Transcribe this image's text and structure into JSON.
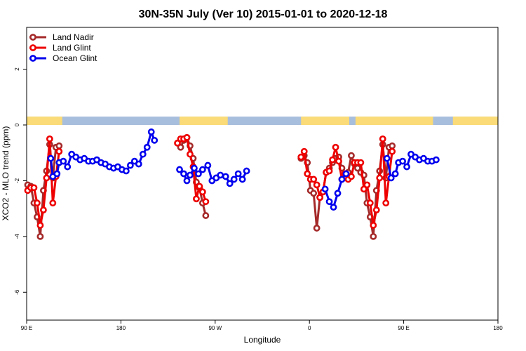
{
  "chart_data": {
    "type": "line",
    "title": "30N-35N July (Ver 10)   2015-01-01 to 2020-12-18",
    "xlabel": "Longitude",
    "ylabel": "XCO2 - MLO trend (ppm)",
    "x_ticks": [
      {
        "pos": 90,
        "label": "90 E"
      },
      {
        "pos": 180,
        "label": "180"
      },
      {
        "pos": 270,
        "label": "90 W"
      },
      {
        "pos": 360,
        "label": "0"
      },
      {
        "pos": 450,
        "label": "90 E"
      },
      {
        "pos": 540,
        "label": "180"
      }
    ],
    "xlim": [
      90,
      540
    ],
    "y_ticks": [
      2,
      0,
      -2,
      -4,
      -6
    ],
    "ylim": [
      -7,
      3.5
    ],
    "grid": false,
    "legend_position": "top-left",
    "land_strip": [
      [
        90,
        124
      ],
      [
        236,
        282
      ],
      [
        352,
        398
      ],
      [
        404,
        478
      ],
      [
        497,
        540
      ]
    ],
    "colors": {
      "land": "#fadb77",
      "ocean": "#a8bedd"
    },
    "series": [
      {
        "name": "Land Nadir",
        "color": "#a52a2a",
        "segments": [
          [
            [
              91,
              -2.15
            ],
            [
              94,
              -2.2
            ],
            [
              97,
              -2.8
            ],
            [
              100,
              -3.3
            ],
            [
              103,
              -4.0
            ],
            [
              106,
              -2.35
            ],
            [
              109,
              -1.65
            ],
            [
              112,
              -0.7
            ],
            [
              115,
              -1.9
            ],
            [
              118,
              -0.8
            ],
            [
              121,
              -0.75
            ]
          ],
          [
            [
              237,
              -0.8
            ],
            [
              240,
              -0.55
            ],
            [
              243,
              -0.45
            ],
            [
              246,
              -0.75
            ],
            [
              249,
              -1.2
            ],
            [
              252,
              -2.05
            ],
            [
              255,
              -2.25
            ],
            [
              258,
              -2.8
            ],
            [
              261,
              -3.25
            ]
          ],
          [
            [
              352,
              -1.2
            ],
            [
              355,
              -1.1
            ],
            [
              358,
              -1.35
            ],
            [
              361,
              -2.35
            ],
            [
              364,
              -2.45
            ],
            [
              367,
              -3.7
            ],
            [
              370,
              -2.6
            ],
            [
              373,
              -2.4
            ],
            [
              376,
              -1.7
            ],
            [
              379,
              -1.55
            ],
            [
              382,
              -1.35
            ],
            [
              385,
              -1.2
            ],
            [
              388,
              -1.15
            ],
            [
              391,
              -1.55
            ],
            [
              394,
              -1.85
            ],
            [
              397,
              -1.7
            ],
            [
              400,
              -1.1
            ],
            [
              403,
              -1.4
            ],
            [
              406,
              -1.55
            ],
            [
              409,
              -1.7
            ],
            [
              412,
              -1.8
            ],
            [
              415,
              -2.8
            ],
            [
              418,
              -3.3
            ],
            [
              421,
              -4.0
            ],
            [
              424,
              -2.35
            ],
            [
              427,
              -1.65
            ],
            [
              430,
              -0.7
            ],
            [
              433,
              -1.9
            ],
            [
              436,
              -0.8
            ],
            [
              439,
              -0.75
            ]
          ]
        ]
      },
      {
        "name": "Land Glint",
        "color": "#ee0000",
        "segments": [
          [
            [
              91,
              -2.35
            ],
            [
              94,
              -2.25
            ],
            [
              97,
              -2.25
            ],
            [
              100,
              -2.8
            ],
            [
              103,
              -3.6
            ],
            [
              106,
              -3.05
            ],
            [
              109,
              -1.9
            ],
            [
              112,
              -0.5
            ],
            [
              115,
              -2.8
            ],
            [
              118,
              -1.85
            ],
            [
              121,
              -0.95
            ]
          ],
          [
            [
              234,
              -0.65
            ],
            [
              237,
              -0.5
            ],
            [
              240,
              -0.5
            ],
            [
              243,
              -0.45
            ],
            [
              246,
              -1.05
            ],
            [
              249,
              -1.5
            ],
            [
              252,
              -2.65
            ],
            [
              255,
              -2.2
            ],
            [
              258,
              -2.4
            ],
            [
              261,
              -2.75
            ]
          ],
          [
            [
              352,
              -1.15
            ],
            [
              355,
              -0.95
            ],
            [
              358,
              -1.75
            ],
            [
              361,
              -1.95
            ],
            [
              364,
              -1.95
            ],
            [
              367,
              -2.15
            ],
            [
              370,
              -2.6
            ],
            [
              373,
              -2.4
            ],
            [
              376,
              -1.7
            ],
            [
              379,
              -1.65
            ],
            [
              382,
              -1.25
            ],
            [
              385,
              -0.8
            ],
            [
              388,
              -1.3
            ],
            [
              391,
              -1.95
            ],
            [
              394,
              -1.75
            ],
            [
              397,
              -1.95
            ],
            [
              400,
              -1.85
            ],
            [
              403,
              -1.35
            ],
            [
              406,
              -1.35
            ],
            [
              409,
              -1.35
            ],
            [
              412,
              -2.3
            ],
            [
              415,
              -2.15
            ],
            [
              418,
              -2.8
            ],
            [
              421,
              -3.6
            ],
            [
              424,
              -3.05
            ],
            [
              427,
              -1.9
            ],
            [
              430,
              -0.5
            ],
            [
              433,
              -2.8
            ],
            [
              436,
              -1.85
            ],
            [
              439,
              -0.95
            ]
          ]
        ]
      },
      {
        "name": "Ocean Glint",
        "color": "#0000ee",
        "segments": [
          [
            [
              113,
              -1.2
            ],
            [
              115,
              -1.85
            ],
            [
              119,
              -1.75
            ],
            [
              121,
              -1.35
            ],
            [
              125,
              -1.3
            ],
            [
              129,
              -1.5
            ],
            [
              133,
              -1.05
            ],
            [
              137,
              -1.15
            ],
            [
              141,
              -1.25
            ],
            [
              145,
              -1.2
            ],
            [
              149,
              -1.3
            ],
            [
              153,
              -1.3
            ],
            [
              157,
              -1.25
            ],
            [
              161,
              -1.35
            ],
            [
              165,
              -1.4
            ],
            [
              169,
              -1.5
            ],
            [
              173,
              -1.55
            ],
            [
              177,
              -1.5
            ],
            [
              181,
              -1.6
            ],
            [
              185,
              -1.65
            ],
            [
              189,
              -1.45
            ],
            [
              193,
              -1.3
            ],
            [
              197,
              -1.4
            ],
            [
              201,
              -1.05
            ],
            [
              205,
              -0.8
            ],
            [
              209,
              -0.25
            ],
            [
              212,
              -0.55
            ]
          ],
          [
            [
              236,
              -1.6
            ],
            [
              240,
              -1.75
            ],
            [
              243,
              -2.0
            ],
            [
              246,
              -1.8
            ],
            [
              250,
              -1.55
            ],
            [
              254,
              -1.75
            ],
            [
              258,
              -1.6
            ],
            [
              263,
              -1.45
            ],
            [
              267,
              -2.0
            ],
            [
              271,
              -1.9
            ],
            [
              275,
              -1.8
            ],
            [
              280,
              -1.85
            ],
            [
              284,
              -2.1
            ],
            [
              288,
              -1.95
            ],
            [
              292,
              -1.75
            ],
            [
              296,
              -1.95
            ],
            [
              300,
              -1.65
            ]
          ],
          [
            [
              375,
              -2.3
            ],
            [
              379,
              -2.75
            ],
            [
              383,
              -2.95
            ],
            [
              387,
              -2.45
            ],
            [
              391,
              -1.95
            ],
            [
              395,
              -1.75
            ]
          ],
          [
            [
              434,
              -1.2
            ],
            [
              438,
              -1.9
            ],
            [
              442,
              -1.75
            ],
            [
              445,
              -1.35
            ],
            [
              449,
              -1.3
            ],
            [
              453,
              -1.5
            ],
            [
              457,
              -1.05
            ],
            [
              461,
              -1.15
            ],
            [
              465,
              -1.25
            ],
            [
              469,
              -1.2
            ],
            [
              473,
              -1.3
            ],
            [
              477,
              -1.3
            ],
            [
              481,
              -1.25
            ]
          ]
        ]
      }
    ]
  }
}
